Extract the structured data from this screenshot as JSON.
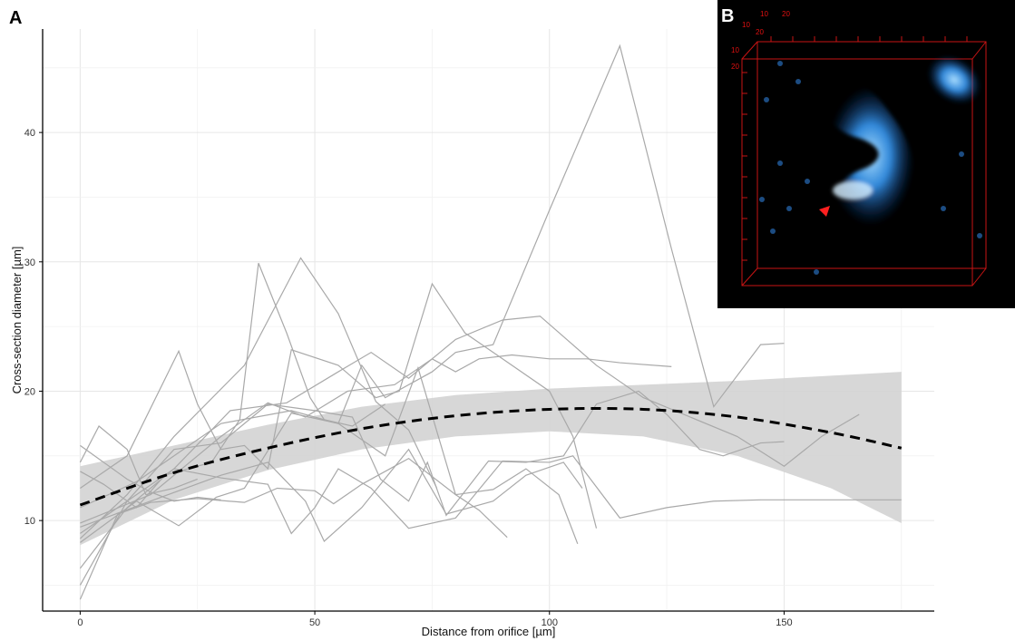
{
  "chart_data": [
    {
      "panel": "A",
      "type": "line",
      "title": "",
      "xlabel": "Distance from orifice [µm]",
      "ylabel": "Cross-section diameter [µm]",
      "xlim": [
        -8,
        182
      ],
      "ylim": [
        3,
        48
      ],
      "xticks": [
        0,
        50,
        100,
        150
      ],
      "yticks": [
        10,
        20,
        30,
        40
      ],
      "grid": true,
      "legend": "none",
      "colors": {
        "traces": "#a9a9a9",
        "trend": "#000000",
        "band": "#d3d3d3"
      },
      "series": [
        {
          "values": [
            [
              0,
              15.8
            ],
            [
              5,
              14.5
            ],
            [
              10,
              13.2
            ],
            [
              15,
              12.2
            ],
            [
              20,
              11.5
            ],
            [
              25,
              11.8
            ],
            [
              30,
              11.6
            ]
          ]
        },
        {
          "values": [
            [
              0,
              14.5
            ],
            [
              4,
              17.3
            ],
            [
              10,
              15.5
            ],
            [
              14,
              12.0
            ],
            [
              20,
              12.5
            ],
            [
              25,
              13.2
            ]
          ]
        },
        {
          "values": [
            [
              0,
              13.8
            ],
            [
              5,
              12.8
            ],
            [
              12,
              11.0
            ],
            [
              18,
              13.5
            ],
            [
              28,
              14.5
            ],
            [
              34,
              17.8
            ],
            [
              38,
              29.9
            ],
            [
              44,
              24.5
            ],
            [
              49,
              19.5
            ],
            [
              52,
              17.8
            ],
            [
              58,
              17.3
            ],
            [
              65,
              19.0
            ]
          ]
        },
        {
          "values": [
            [
              0,
              8.6
            ],
            [
              10,
              12.0
            ],
            [
              20,
              16.5
            ],
            [
              35,
              22.0
            ],
            [
              47,
              30.3
            ],
            [
              55,
              26.0
            ],
            [
              63,
              19.2
            ],
            [
              70,
              17.0
            ],
            [
              76,
              12.5
            ]
          ]
        },
        {
          "values": [
            [
              0,
              12.5
            ],
            [
              10,
              15.0
            ],
            [
              21,
              23.1
            ],
            [
              25,
              19.0
            ],
            [
              30,
              15.5
            ],
            [
              35,
              15.8
            ],
            [
              40,
              14.0
            ],
            [
              45,
              23.2
            ],
            [
              55,
              22.0
            ],
            [
              63,
              19.5
            ],
            [
              68,
              20.0
            ],
            [
              75,
              28.3
            ],
            [
              82,
              24.5
            ],
            [
              90,
              22.5
            ],
            [
              100,
              20.0
            ],
            [
              105,
              16.5
            ],
            [
              110,
              9.4
            ]
          ]
        },
        {
          "values": [
            [
              0,
              8.3
            ],
            [
              12,
              11.5
            ],
            [
              21,
              9.6
            ],
            [
              29,
              11.8
            ],
            [
              35,
              12.5
            ],
            [
              45,
              18.3
            ],
            [
              55,
              17.5
            ],
            [
              60,
              22.0
            ],
            [
              65,
              19.5
            ],
            [
              75,
              21.5
            ],
            [
              80,
              23.0
            ],
            [
              88,
              23.6
            ],
            [
              100,
              34.0
            ],
            [
              115,
              46.7
            ],
            [
              126,
              31.0
            ],
            [
              135,
              18.8
            ],
            [
              145,
              23.6
            ],
            [
              150,
              23.7
            ]
          ]
        },
        {
          "values": [
            [
              0,
              6.3
            ],
            [
              10,
              11.0
            ],
            [
              20,
              14.0
            ],
            [
              30,
              13.3
            ],
            [
              40,
              12.8
            ],
            [
              45,
              9.0
            ],
            [
              50,
              11.0
            ],
            [
              55,
              14.0
            ],
            [
              62,
              12.5
            ],
            [
              70,
              9.4
            ],
            [
              80,
              10.2
            ],
            [
              90,
              14.6
            ],
            [
              100,
              14.5
            ],
            [
              105,
              15.0
            ],
            [
              115,
              10.2
            ],
            [
              125,
              11.0
            ],
            [
              135,
              11.5
            ],
            [
              145,
              11.6
            ],
            [
              175,
              11.6
            ]
          ]
        },
        {
          "values": [
            [
              0,
              3.9
            ],
            [
              8,
              10.5
            ],
            [
              15,
              11.4
            ],
            [
              25,
              11.7
            ],
            [
              35,
              11.4
            ],
            [
              42,
              12.5
            ],
            [
              50,
              12.3
            ],
            [
              54,
              11.3
            ],
            [
              60,
              12.8
            ],
            [
              70,
              14.8
            ],
            [
              80,
              12.0
            ],
            [
              88,
              12.4
            ],
            [
              95,
              14.0
            ],
            [
              102,
              12.0
            ],
            [
              106,
              8.2
            ]
          ]
        },
        {
          "values": [
            [
              0,
              5.0
            ],
            [
              10,
              11.5
            ],
            [
              20,
              15.5
            ],
            [
              30,
              16.0
            ],
            [
              40,
              19.0
            ],
            [
              50,
              18.5
            ],
            [
              58,
              18.0
            ],
            [
              64,
              13.2
            ],
            [
              70,
              11.5
            ],
            [
              74,
              14.5
            ],
            [
              78,
              10.4
            ],
            [
              87,
              14.6
            ],
            [
              95,
              14.5
            ],
            [
              103,
              15.0
            ],
            [
              110,
              19.0
            ],
            [
              119,
              20.0
            ],
            [
              125,
              18.2
            ],
            [
              132,
              15.5
            ],
            [
              137,
              15.0
            ],
            [
              145,
              16.0
            ],
            [
              150,
              16.1
            ]
          ]
        },
        {
          "values": [
            [
              0,
              9.8
            ],
            [
              15,
              12.0
            ],
            [
              30,
              16.5
            ],
            [
              40,
              19.1
            ],
            [
              48,
              18.0
            ],
            [
              57,
              20.0
            ],
            [
              67,
              20.5
            ],
            [
              75,
              22.5
            ],
            [
              80,
              21.5
            ],
            [
              85,
              22.5
            ],
            [
              92,
              22.8
            ],
            [
              100,
              22.5
            ],
            [
              108,
              22.5
            ],
            [
              115,
              22.2
            ],
            [
              126,
              21.9
            ]
          ]
        },
        {
          "values": [
            [
              0,
              9.0
            ],
            [
              10,
              11.5
            ],
            [
              20,
              14.0
            ],
            [
              32,
              18.5
            ],
            [
              44,
              19.1
            ],
            [
              55,
              21.5
            ],
            [
              62,
              23.0
            ],
            [
              70,
              21.0
            ],
            [
              80,
              24.0
            ],
            [
              90,
              25.5
            ],
            [
              98,
              25.8
            ],
            [
              110,
              22.0
            ],
            [
              120,
              19.5
            ],
            [
              130,
              18.0
            ],
            [
              140,
              16.5
            ],
            [
              150,
              14.2
            ],
            [
              158,
              16.5
            ],
            [
              166,
              18.2
            ]
          ]
        },
        {
          "values": [
            [
              0,
              11.0
            ],
            [
              12,
              13.0
            ],
            [
              20,
              15.0
            ],
            [
              30,
              17.5
            ],
            [
              45,
              18.5
            ],
            [
              55,
              17.5
            ],
            [
              65,
              15.0
            ],
            [
              72,
              21.8
            ],
            [
              80,
              12.0
            ],
            [
              85,
              10.8
            ],
            [
              91,
              8.7
            ]
          ]
        },
        {
          "values": [
            [
              0,
              9.5
            ],
            [
              15,
              11.5
            ],
            [
              30,
              13.5
            ],
            [
              40,
              14.5
            ],
            [
              48,
              11.5
            ],
            [
              52,
              8.4
            ],
            [
              60,
              11.0
            ],
            [
              70,
              15.5
            ],
            [
              78,
              10.5
            ],
            [
              88,
              11.5
            ],
            [
              95,
              13.5
            ],
            [
              103,
              14.5
            ],
            [
              107,
              12.5
            ]
          ]
        }
      ],
      "trend": [
        [
          0,
          11.2
        ],
        [
          20,
          13.7
        ],
        [
          40,
          15.6
        ],
        [
          60,
          17.1
        ],
        [
          80,
          18.1
        ],
        [
          100,
          18.6
        ],
        [
          120,
          18.6
        ],
        [
          140,
          18.0
        ],
        [
          160,
          16.8
        ],
        [
          175,
          15.6
        ]
      ],
      "band_upper": [
        [
          0,
          14.2
        ],
        [
          20,
          15.8
        ],
        [
          40,
          17.4
        ],
        [
          60,
          18.8
        ],
        [
          80,
          19.7
        ],
        [
          100,
          20.2
        ],
        [
          120,
          20.5
        ],
        [
          140,
          20.8
        ],
        [
          160,
          21.2
        ],
        [
          175,
          21.5
        ]
      ],
      "band_lower": [
        [
          0,
          8.1
        ],
        [
          20,
          11.6
        ],
        [
          40,
          13.9
        ],
        [
          60,
          15.5
        ],
        [
          80,
          16.5
        ],
        [
          100,
          16.9
        ],
        [
          120,
          16.5
        ],
        [
          140,
          15.0
        ],
        [
          160,
          12.5
        ],
        [
          175,
          9.8
        ]
      ]
    },
    {
      "panel": "B",
      "type": "image",
      "description_visible": "3D fluorescence micrograph inset with red bounding box, tick labels and arrowhead",
      "tick_labels": [
        "10",
        "20",
        "10",
        "20",
        "10",
        "20"
      ],
      "colors": {
        "background": "#000000",
        "frame": "#c81414",
        "signal": "#3aa0ff"
      }
    }
  ]
}
